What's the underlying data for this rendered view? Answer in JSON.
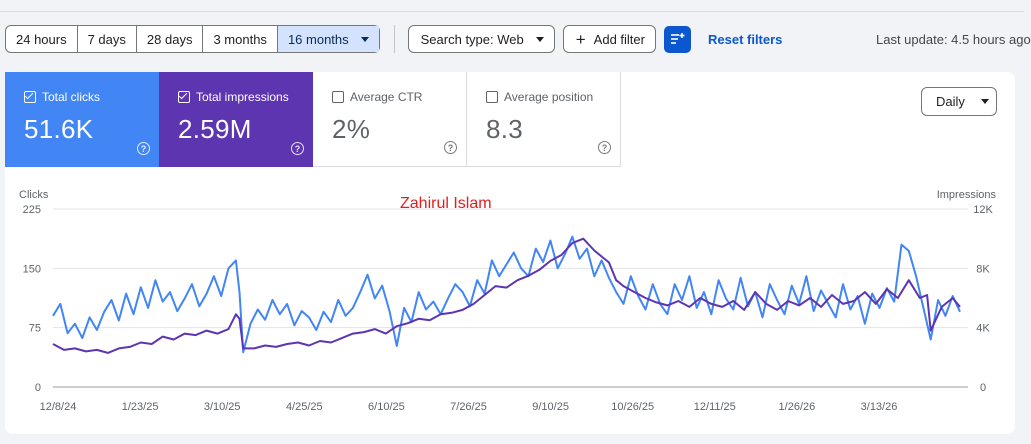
{
  "toolbar": {
    "ranges": [
      {
        "label": "24 hours",
        "active": false
      },
      {
        "label": "7 days",
        "active": false
      },
      {
        "label": "28 days",
        "active": false
      },
      {
        "label": "3 months",
        "active": false
      },
      {
        "label": "16 months",
        "active": true
      }
    ],
    "search_type": "Search type: Web",
    "add_filter": "Add filter",
    "reset_filters": "Reset filters",
    "last_update": "Last update: 4.5 hours ago"
  },
  "cards": [
    {
      "label": "Total clicks",
      "value": "51.6K",
      "checked": true,
      "color": "#4285f4"
    },
    {
      "label": "Total impressions",
      "value": "2.59M",
      "checked": true,
      "color": "#5e35b1"
    },
    {
      "label": "Average CTR",
      "value": "2%",
      "checked": false
    },
    {
      "label": "Average position",
      "value": "8.3",
      "checked": false
    }
  ],
  "granularity": "Daily",
  "chart_data": {
    "type": "line",
    "watermark": "Zahirul Islam",
    "left_axis_label": "Clicks",
    "right_axis_label": "Impressions",
    "left_ticks": [
      "225",
      "150",
      "75",
      "0"
    ],
    "right_ticks": [
      "12K",
      "8K",
      "4K",
      "0"
    ],
    "ylim_left": [
      0,
      225
    ],
    "ylim_right": [
      0,
      12000
    ],
    "x_ticks": [
      "12/8/24",
      "1/23/25",
      "3/10/25",
      "4/25/25",
      "6/10/25",
      "7/26/25",
      "9/10/25",
      "10/26/25",
      "12/11/25",
      "1/26/26",
      "3/13/26"
    ],
    "series": [
      {
        "name": "Total clicks",
        "color": "#4285f4",
        "axis": "left",
        "points": [
          [
            0,
            90
          ],
          [
            4,
            105
          ],
          [
            8,
            68
          ],
          [
            12,
            80
          ],
          [
            16,
            62
          ],
          [
            20,
            88
          ],
          [
            24,
            72
          ],
          [
            28,
            95
          ],
          [
            32,
            110
          ],
          [
            36,
            84
          ],
          [
            40,
            118
          ],
          [
            44,
            92
          ],
          [
            48,
            126
          ],
          [
            52,
            100
          ],
          [
            56,
            135
          ],
          [
            60,
            108
          ],
          [
            64,
            120
          ],
          [
            68,
            96
          ],
          [
            72,
            112
          ],
          [
            76,
            130
          ],
          [
            80,
            102
          ],
          [
            84,
            118
          ],
          [
            88,
            140
          ],
          [
            92,
            115
          ],
          [
            96,
            150
          ],
          [
            100,
            160
          ],
          [
            102,
            120
          ],
          [
            104,
            44
          ],
          [
            108,
            80
          ],
          [
            112,
            98
          ],
          [
            116,
            85
          ],
          [
            120,
            110
          ],
          [
            124,
            92
          ],
          [
            128,
            105
          ],
          [
            132,
            78
          ],
          [
            136,
            96
          ],
          [
            140,
            88
          ],
          [
            144,
            72
          ],
          [
            148,
            95
          ],
          [
            152,
            82
          ],
          [
            156,
            110
          ],
          [
            160,
            90
          ],
          [
            164,
            100
          ],
          [
            168,
            120
          ],
          [
            172,
            142
          ],
          [
            176,
            112
          ],
          [
            180,
            128
          ],
          [
            184,
            96
          ],
          [
            188,
            52
          ],
          [
            192,
            100
          ],
          [
            196,
            82
          ],
          [
            200,
            120
          ],
          [
            204,
            98
          ],
          [
            208,
            108
          ],
          [
            212,
            92
          ],
          [
            216,
            112
          ],
          [
            220,
            130
          ],
          [
            224,
            120
          ],
          [
            228,
            102
          ],
          [
            232,
            135
          ],
          [
            236,
            118
          ],
          [
            240,
            160
          ],
          [
            244,
            140
          ],
          [
            248,
            155
          ],
          [
            252,
            170
          ],
          [
            256,
            150
          ],
          [
            260,
            140
          ],
          [
            264,
            175
          ],
          [
            268,
            158
          ],
          [
            272,
            185
          ],
          [
            276,
            150
          ],
          [
            280,
            168
          ],
          [
            284,
            190
          ],
          [
            288,
            162
          ],
          [
            292,
            175
          ],
          [
            296,
            140
          ],
          [
            300,
            160
          ],
          [
            304,
            138
          ],
          [
            308,
            120
          ],
          [
            312,
            105
          ],
          [
            316,
            140
          ],
          [
            320,
            115
          ],
          [
            324,
            98
          ],
          [
            328,
            130
          ],
          [
            332,
            105
          ],
          [
            336,
            92
          ],
          [
            340,
            130
          ],
          [
            344,
            110
          ],
          [
            348,
            140
          ],
          [
            352,
            100
          ],
          [
            356,
            120
          ],
          [
            360,
            92
          ],
          [
            364,
            135
          ],
          [
            368,
            112
          ],
          [
            372,
            98
          ],
          [
            376,
            138
          ],
          [
            380,
            102
          ],
          [
            384,
            120
          ],
          [
            388,
            88
          ],
          [
            392,
            130
          ],
          [
            396,
            110
          ],
          [
            400,
            92
          ],
          [
            404,
            128
          ],
          [
            408,
            105
          ],
          [
            412,
            140
          ],
          [
            416,
            96
          ],
          [
            420,
            122
          ],
          [
            424,
            105
          ],
          [
            428,
            88
          ],
          [
            432,
            130
          ],
          [
            436,
            98
          ],
          [
            440,
            115
          ],
          [
            444,
            80
          ],
          [
            448,
            118
          ],
          [
            452,
            100
          ],
          [
            456,
            125
          ],
          [
            460,
            108
          ],
          [
            464,
            180
          ],
          [
            468,
            172
          ],
          [
            472,
            140
          ],
          [
            476,
            100
          ],
          [
            480,
            60
          ],
          [
            484,
            110
          ],
          [
            488,
            90
          ],
          [
            492,
            115
          ],
          [
            496,
            95
          ]
        ]
      },
      {
        "name": "Total impressions",
        "color": "#5e35b1",
        "axis": "right",
        "points": [
          [
            0,
            2900
          ],
          [
            6,
            2500
          ],
          [
            12,
            2600
          ],
          [
            18,
            2400
          ],
          [
            24,
            2500
          ],
          [
            30,
            2300
          ],
          [
            36,
            2600
          ],
          [
            42,
            2700
          ],
          [
            48,
            3000
          ],
          [
            54,
            2900
          ],
          [
            60,
            3400
          ],
          [
            66,
            3200
          ],
          [
            72,
            3600
          ],
          [
            78,
            3500
          ],
          [
            84,
            3800
          ],
          [
            90,
            3600
          ],
          [
            96,
            3900
          ],
          [
            100,
            4900
          ],
          [
            102,
            4600
          ],
          [
            104,
            2600
          ],
          [
            110,
            2600
          ],
          [
            116,
            2800
          ],
          [
            122,
            2700
          ],
          [
            128,
            2900
          ],
          [
            134,
            3000
          ],
          [
            140,
            2800
          ],
          [
            146,
            3100
          ],
          [
            152,
            3000
          ],
          [
            158,
            3300
          ],
          [
            164,
            3600
          ],
          [
            170,
            3700
          ],
          [
            176,
            3900
          ],
          [
            182,
            3600
          ],
          [
            188,
            4100
          ],
          [
            194,
            4300
          ],
          [
            200,
            4600
          ],
          [
            206,
            4500
          ],
          [
            212,
            4900
          ],
          [
            218,
            5000
          ],
          [
            224,
            5200
          ],
          [
            230,
            5600
          ],
          [
            236,
            6200
          ],
          [
            242,
            6800
          ],
          [
            248,
            6700
          ],
          [
            254,
            7200
          ],
          [
            260,
            7500
          ],
          [
            266,
            7900
          ],
          [
            272,
            8500
          ],
          [
            278,
            8900
          ],
          [
            284,
            9700
          ],
          [
            290,
            10000
          ],
          [
            296,
            9200
          ],
          [
            300,
            8800
          ],
          [
            304,
            8400
          ],
          [
            308,
            7200
          ],
          [
            312,
            6800
          ],
          [
            318,
            6400
          ],
          [
            324,
            6000
          ],
          [
            330,
            5700
          ],
          [
            336,
            5500
          ],
          [
            342,
            5800
          ],
          [
            348,
            5400
          ],
          [
            354,
            6000
          ],
          [
            360,
            5600
          ],
          [
            366,
            5400
          ],
          [
            372,
            5800
          ],
          [
            378,
            5200
          ],
          [
            384,
            6400
          ],
          [
            390,
            5600
          ],
          [
            396,
            5200
          ],
          [
            402,
            5800
          ],
          [
            408,
            5500
          ],
          [
            414,
            6000
          ],
          [
            420,
            5400
          ],
          [
            426,
            6200
          ],
          [
            432,
            5600
          ],
          [
            438,
            5800
          ],
          [
            444,
            6400
          ],
          [
            450,
            5600
          ],
          [
            456,
            6600
          ],
          [
            462,
            6000
          ],
          [
            468,
            7200
          ],
          [
            474,
            6000
          ],
          [
            478,
            6200
          ],
          [
            480,
            3800
          ],
          [
            486,
            5400
          ],
          [
            492,
            6000
          ],
          [
            496,
            5400
          ]
        ]
      }
    ]
  }
}
